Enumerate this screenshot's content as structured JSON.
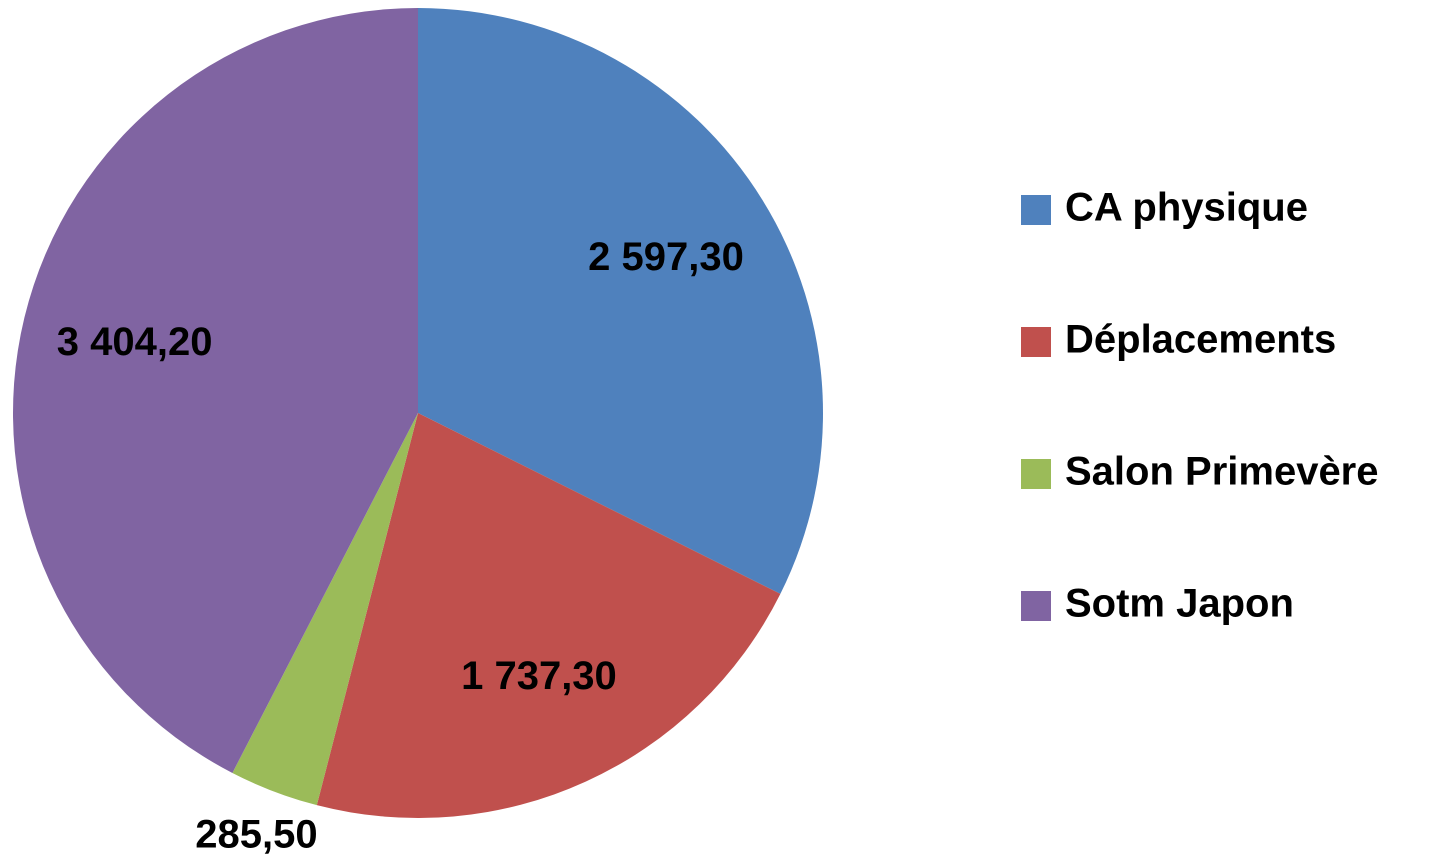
{
  "chart_data": {
    "type": "pie",
    "categories": [
      "CA physique",
      "Déplacements",
      "Salon Primevère",
      "Sotm Japon"
    ],
    "values": [
      2597.3,
      1737.3,
      285.5,
      3404.2
    ],
    "value_labels": [
      "2 597,30",
      "1 737,30",
      "285,50",
      "3 404,20"
    ],
    "colors": [
      "#4f81bd",
      "#c0504d",
      "#9bbb59",
      "#8064a2"
    ],
    "legend": "right"
  }
}
